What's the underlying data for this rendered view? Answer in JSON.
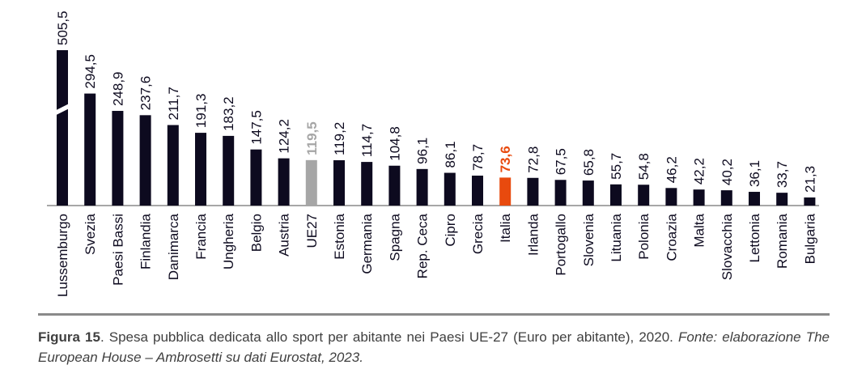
{
  "chart_data": {
    "type": "bar",
    "categories": [
      "Lussemburgo",
      "Svezia",
      "Paesi Bassi",
      "Finlandia",
      "Danimarca",
      "Francia",
      "Ungheria",
      "Belgio",
      "Austria",
      "UE27",
      "Estonia",
      "Germania",
      "Spagna",
      "Rep. Ceca",
      "Cipro",
      "Grecia",
      "Italia",
      "Irlanda",
      "Portogallo",
      "Slovenia",
      "Lituania",
      "Polonia",
      "Croazia",
      "Malta",
      "Slovacchia",
      "Lettonia",
      "Romania",
      "Bulgaria"
    ],
    "values": [
      505.5,
      294.5,
      248.9,
      237.6,
      211.7,
      191.3,
      183.2,
      147.5,
      124.2,
      119.5,
      119.2,
      114.7,
      104.8,
      96.1,
      86.1,
      78.7,
      73.6,
      72.8,
      67.5,
      65.8,
      55.7,
      54.8,
      46.2,
      42.2,
      40.2,
      36.1,
      33.7,
      21.3
    ],
    "value_labels": [
      "505,5",
      "294,5",
      "248,9",
      "237,6",
      "211,7",
      "191,3",
      "183,2",
      "147,5",
      "124,2",
      "119,5",
      "119,2",
      "114,7",
      "104,8",
      "96,1",
      "86,1",
      "78,7",
      "73,6",
      "72,8",
      "67,5",
      "65,8",
      "55,7",
      "54,8",
      "46,2",
      "42,2",
      "40,2",
      "36,1",
      "33,7",
      "21,3"
    ],
    "bar_colors": [
      "#0d0a1f",
      "#0d0a1f",
      "#0d0a1f",
      "#0d0a1f",
      "#0d0a1f",
      "#0d0a1f",
      "#0d0a1f",
      "#0d0a1f",
      "#0d0a1f",
      "#a6a6a6",
      "#0d0a1f",
      "#0d0a1f",
      "#0d0a1f",
      "#0d0a1f",
      "#0d0a1f",
      "#0d0a1f",
      "#e84a0e",
      "#0d0a1f",
      "#0d0a1f",
      "#0d0a1f",
      "#0d0a1f",
      "#0d0a1f",
      "#0d0a1f",
      "#0d0a1f",
      "#0d0a1f",
      "#0d0a1f",
      "#0d0a1f",
      "#0d0a1f"
    ],
    "label_colors": [
      "#0d0a1f",
      "#0d0a1f",
      "#0d0a1f",
      "#0d0a1f",
      "#0d0a1f",
      "#0d0a1f",
      "#0d0a1f",
      "#0d0a1f",
      "#0d0a1f",
      "#a6a6a6",
      "#0d0a1f",
      "#0d0a1f",
      "#0d0a1f",
      "#0d0a1f",
      "#0d0a1f",
      "#0d0a1f",
      "#e84a0e",
      "#0d0a1f",
      "#0d0a1f",
      "#0d0a1f",
      "#0d0a1f",
      "#0d0a1f",
      "#0d0a1f",
      "#0d0a1f",
      "#0d0a1f",
      "#0d0a1f",
      "#0d0a1f",
      "#0d0a1f"
    ],
    "bold_labels": [
      "UE27",
      "Italia"
    ],
    "broken_axis_bar": "Lussemburgo",
    "grid": false,
    "legend": "none"
  },
  "caption": {
    "figure_label": "Figura 15",
    "text": ". Spesa pubblica dedicata allo sport per abitante nei Paesi UE-27 (Euro per abitante), 2020. ",
    "source_label": "Fonte:",
    "source_text": " elaborazione The European House – Ambrosetti su dati Eurostat, 2023."
  }
}
